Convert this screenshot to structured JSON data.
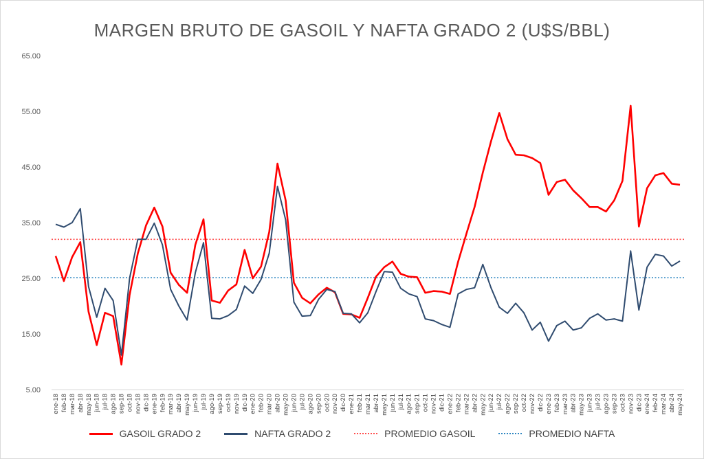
{
  "chart_data": {
    "type": "line",
    "title": "MARGEN BRUTO DE GASOIL Y NAFTA GRADO 2 (U$S/BBL)",
    "xlabel": "",
    "ylabel": "",
    "ylim": [
      5,
      65
    ],
    "yticks": [
      "5.00",
      "15.00",
      "25.00",
      "35.00",
      "45.00",
      "55.00",
      "65.00"
    ],
    "ytick_values": [
      5,
      15,
      25,
      35,
      45,
      55,
      65
    ],
    "grid": false,
    "legend_position": "bottom",
    "categories": [
      "ene-18",
      "feb-18",
      "mar-18",
      "abr-18",
      "may-18",
      "jun-18",
      "jul-18",
      "ago-18",
      "sep-18",
      "oct-18",
      "nov-18",
      "dic-18",
      "ene-19",
      "feb-19",
      "mar-19",
      "abr-19",
      "may-19",
      "jun-19",
      "jul-19",
      "ago-19",
      "sep-19",
      "oct-19",
      "nov-19",
      "dic-19",
      "ene-20",
      "feb-20",
      "mar-20",
      "abr-20",
      "may-20",
      "jun-20",
      "jul-20",
      "ago-20",
      "sep-20",
      "oct-20",
      "nov-20",
      "dic-20",
      "ene-21",
      "feb-21",
      "mar-21",
      "abr-21",
      "may-21",
      "jun-21",
      "jul-21",
      "ago-21",
      "sep-21",
      "oct-21",
      "nov-21",
      "dic-21",
      "ene-22",
      "feb-22",
      "mar-22",
      "abr-22",
      "may-22",
      "jun-22",
      "jul-22",
      "ago-22",
      "sep-22",
      "oct-22",
      "nov-22",
      "dic-22",
      "ene-23",
      "feb-23",
      "mar-23",
      "abr-23",
      "may-23",
      "jun-23",
      "jul-23",
      "ago-23",
      "sep-23",
      "oct-23",
      "nov-23",
      "dic-23",
      "ene-24",
      "feb-24",
      "mar-24",
      "abr-24",
      "may-24"
    ],
    "series": [
      {
        "name": "GASOIL GRADO 2",
        "color": "#ff0000",
        "style": "solid",
        "values": [
          29,
          24.5,
          28.8,
          31.5,
          19,
          13,
          18.8,
          18.2,
          9.5,
          22,
          29.5,
          34.5,
          37.7,
          34.3,
          26,
          23.8,
          22.4,
          31,
          35.6,
          21,
          20.6,
          22.8,
          23.9,
          30.1,
          25,
          27.1,
          33.3,
          45.6,
          39,
          24.2,
          21.5,
          20.5,
          22.1,
          23.3,
          22.5,
          18.6,
          18.5,
          17.9,
          21.5,
          25.3,
          27,
          28,
          25.8,
          25.3,
          25.2,
          22.4,
          22.7,
          22.6,
          22.2,
          28,
          33,
          37.8,
          44,
          49.6,
          54.7,
          50,
          47.2,
          47.1,
          46.6,
          45.7,
          40,
          42.3,
          42.7,
          40.8,
          39.4,
          37.8,
          37.8,
          37,
          39,
          42.5,
          56,
          34.3,
          41.2,
          43.5,
          43.9,
          42,
          41.8
        ]
      },
      {
        "name": "NAFTA GRADO 2",
        "color": "#2f4b6f",
        "style": "solid",
        "values": [
          34.7,
          34.2,
          35,
          37.5,
          23.5,
          18,
          23.2,
          21,
          11.2,
          25,
          32,
          32,
          34.9,
          31,
          23,
          20,
          17.5,
          26,
          31.4,
          17.8,
          17.7,
          18.3,
          19.4,
          23.6,
          22.3,
          24.8,
          29.5,
          41.5,
          35.5,
          20.7,
          18.2,
          18.3,
          21.2,
          23,
          22.6,
          18.7,
          18.6,
          17,
          18.8,
          22.6,
          26.2,
          26.1,
          23.2,
          22.2,
          21.7,
          17.7,
          17.4,
          16.7,
          16.2,
          22.2,
          23,
          23.3,
          27.5,
          23.3,
          19.8,
          18.7,
          20.5,
          18.8,
          15.7,
          17.1,
          13.7,
          16.5,
          17.3,
          15.7,
          16.1,
          17.8,
          18.6,
          17.5,
          17.7,
          17.3,
          29.9,
          19.3,
          27,
          29.3,
          29,
          27.2,
          28.1
        ]
      },
      {
        "name": "PROMEDIO GASOIL",
        "color": "#ff4d4d",
        "style": "dotted",
        "value": 32
      },
      {
        "name": "PROMEDIO NAFTA",
        "color": "#2e86c1",
        "style": "dotted",
        "value": 25.1
      }
    ]
  }
}
